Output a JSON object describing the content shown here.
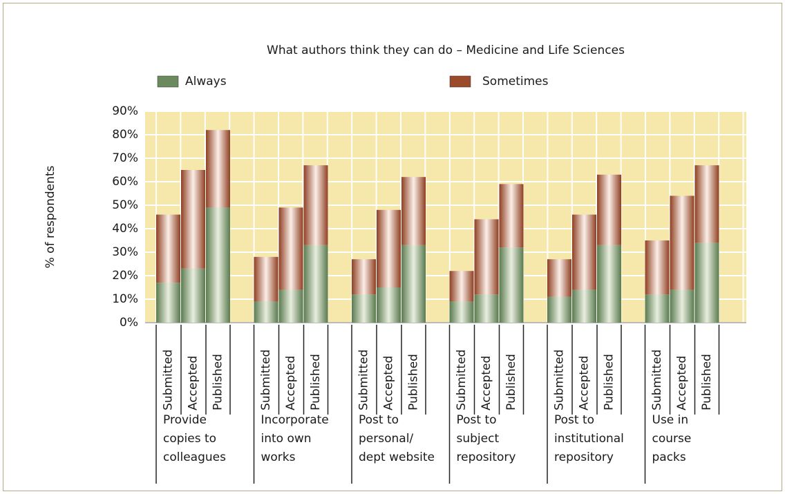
{
  "chart_data": {
    "type": "stacked_grouped_bar",
    "title": "What authors think they can do – Medicine and Life Sciences",
    "ylabel": "% of respondents",
    "groups": [
      [
        "Provide",
        "copies to",
        "colleagues"
      ],
      [
        "Incorporate",
        "into own",
        "works"
      ],
      [
        "Post to",
        "personal/",
        "dept website"
      ],
      [
        "Post to",
        "subject",
        "repository"
      ],
      [
        "Post to",
        "institutional",
        "repository"
      ],
      [
        "Use in",
        "course",
        "packs"
      ]
    ],
    "subcategories": [
      "Submitted",
      "Accepted",
      "Published"
    ],
    "series": [
      {
        "name": "Always",
        "color": "#6b8a5e",
        "values": [
          17,
          23,
          49,
          9,
          14,
          33,
          12,
          15,
          33,
          9,
          12,
          32,
          11,
          14,
          33,
          12,
          14,
          34
        ]
      },
      {
        "name": "Sometimes",
        "color": "#9b4a2a",
        "values": [
          29,
          42,
          33,
          19,
          35,
          34,
          15,
          33,
          29,
          13,
          32,
          27,
          16,
          32,
          30,
          23,
          40,
          33
        ]
      }
    ],
    "ylim": [
      0,
      90
    ],
    "yticks": [
      {
        "value": 0,
        "label": "0%"
      },
      {
        "value": 10,
        "label": "10%"
      },
      {
        "value": 20,
        "label": "20%"
      },
      {
        "value": 30,
        "label": "30%"
      },
      {
        "value": 40,
        "label": "40%"
      },
      {
        "value": 50,
        "label": "50%"
      },
      {
        "value": 60,
        "label": "60%"
      },
      {
        "value": 70,
        "label": "70%"
      },
      {
        "value": 80,
        "label": "80%"
      },
      {
        "value": 90,
        "label": "90%"
      }
    ],
    "grid": true,
    "background": "#f6e7ab"
  }
}
